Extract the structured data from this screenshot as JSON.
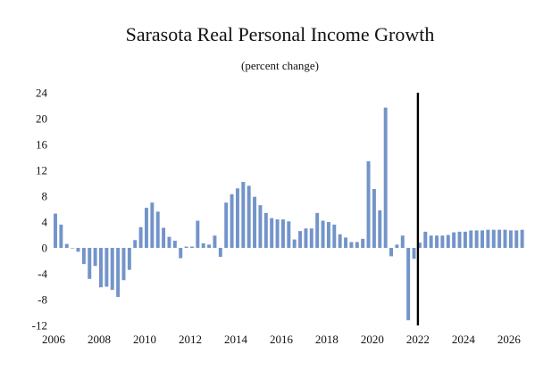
{
  "chart_data": {
    "type": "bar",
    "title": "Sarasota Real Personal Income Growth",
    "subtitle": "(percent change)",
    "xlabel": "",
    "ylabel": "",
    "ylim": [
      -12,
      24
    ],
    "yticks": [
      -12,
      -8,
      -4,
      0,
      4,
      8,
      12,
      16,
      20,
      24
    ],
    "xlim": [
      2006,
      2026.75
    ],
    "xticks": [
      2006,
      2008,
      2010,
      2012,
      2014,
      2016,
      2018,
      2020,
      2022,
      2024,
      2026
    ],
    "forecast_divider_x": 2022.0,
    "bar_color": "#7394c9",
    "divider_color": "#000000",
    "series": [
      {
        "name": "Real Personal Income Growth",
        "x": [
          2006.0,
          2006.25,
          2006.5,
          2006.75,
          2007.0,
          2007.25,
          2007.5,
          2007.75,
          2008.0,
          2008.25,
          2008.5,
          2008.75,
          2009.0,
          2009.25,
          2009.5,
          2009.75,
          2010.0,
          2010.25,
          2010.5,
          2010.75,
          2011.0,
          2011.25,
          2011.5,
          2011.75,
          2012.0,
          2012.25,
          2012.5,
          2012.75,
          2013.0,
          2013.25,
          2013.5,
          2013.75,
          2014.0,
          2014.25,
          2014.5,
          2014.75,
          2015.0,
          2015.25,
          2015.5,
          2015.75,
          2016.0,
          2016.25,
          2016.5,
          2016.75,
          2017.0,
          2017.25,
          2017.5,
          2017.75,
          2018.0,
          2018.25,
          2018.5,
          2018.75,
          2019.0,
          2019.25,
          2019.5,
          2019.75,
          2020.0,
          2020.25,
          2020.5,
          2020.75,
          2021.0,
          2021.25,
          2021.5,
          2021.75,
          2022.0,
          2022.25,
          2022.5,
          2022.75,
          2023.0,
          2023.25,
          2023.5,
          2023.75,
          2024.0,
          2024.25,
          2024.5,
          2024.75,
          2025.0,
          2025.25,
          2025.5,
          2025.75,
          2026.0,
          2026.25,
          2026.5
        ],
        "values": [
          5.3,
          3.6,
          0.6,
          0.0,
          -0.6,
          -2.5,
          -4.8,
          -2.8,
          -6.1,
          -6.0,
          -6.5,
          -7.6,
          -5.0,
          -3.4,
          1.2,
          3.2,
          6.2,
          7.0,
          5.6,
          3.1,
          1.7,
          1.1,
          -1.6,
          0.2,
          0.2,
          4.2,
          0.7,
          0.5,
          1.9,
          -1.4,
          7.0,
          8.3,
          9.2,
          10.2,
          9.6,
          7.9,
          6.6,
          5.4,
          4.6,
          4.4,
          4.4,
          4.1,
          1.3,
          2.6,
          3.0,
          3.0,
          5.4,
          4.2,
          4.0,
          3.6,
          2.1,
          1.6,
          0.9,
          0.9,
          1.4,
          13.4,
          9.1,
          5.8,
          21.7,
          -1.3,
          0.5,
          1.9,
          -11.2,
          -1.7,
          0.8,
          2.5,
          1.9,
          1.9,
          1.9,
          2.0,
          2.4,
          2.5,
          2.5,
          2.7,
          2.7,
          2.7,
          2.8,
          2.8,
          2.8,
          2.8,
          2.7,
          2.7,
          2.8
        ]
      }
    ]
  }
}
